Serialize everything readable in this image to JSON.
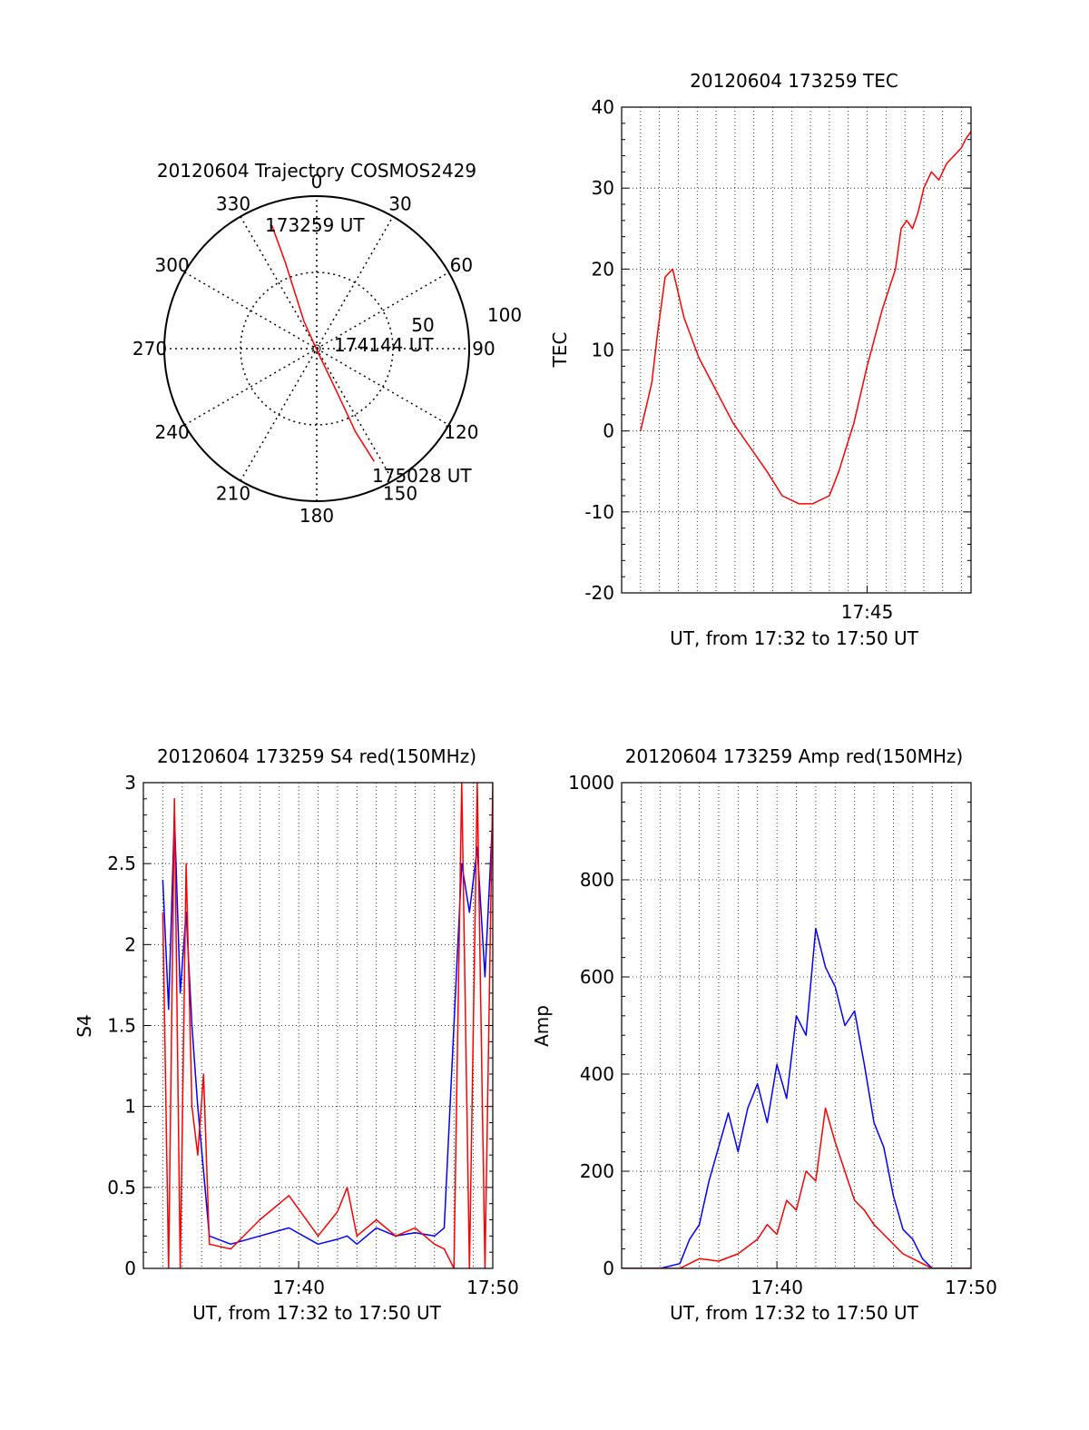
{
  "chart_data": [
    {
      "type": "polar",
      "title": "20120604 Trajectory COSMOS2429",
      "azimuth_labels": [
        "0",
        "30",
        "60",
        "90",
        "120",
        "150",
        "180",
        "210",
        "240",
        "270",
        "300",
        "330"
      ],
      "radial_ring_labels": [
        "50",
        "100"
      ],
      "series": [
        {
          "color": "#ff0000",
          "points": [
            {
              "az": 340,
              "r": 86
            },
            {
              "az": 340,
              "r": 60
            },
            {
              "az": 335,
              "r": 20
            },
            {
              "az": 165,
              "r": 2
            },
            {
              "az": 155,
              "r": 30
            },
            {
              "az": 155,
              "r": 60
            },
            {
              "az": 153,
              "r": 83
            }
          ]
        }
      ],
      "annotations": [
        "173259 UT",
        "174144 UT",
        "175028 UT"
      ]
    },
    {
      "type": "line",
      "title": "20120604 173259 TEC",
      "xlabel": "UT, from 17:32 to 17:50 UT",
      "ylabel": "TEC",
      "ylim": [
        -20,
        40
      ],
      "yticks": [
        "-20",
        "-10",
        "0",
        "10",
        "20",
        "30",
        "40"
      ],
      "xticks": [
        {
          "t": 45,
          "label": "17:45"
        }
      ],
      "xlim_minutes": [
        32.0,
        50.5
      ],
      "grid": true,
      "series": [
        {
          "color": "#ff0000",
          "x": [
            33.0,
            33.3,
            33.6,
            33.9,
            34.3,
            34.7,
            35.3,
            36.1,
            37.0,
            37.9,
            38.8,
            39.7,
            40.5,
            41.4,
            42.1,
            43.0,
            43.5,
            43.9,
            44.3,
            45.0,
            45.8,
            46.5,
            46.8,
            47.1,
            47.4,
            47.7,
            48.0,
            48.4,
            48.8,
            49.2,
            49.6,
            50.0,
            50.2,
            50.5
          ],
          "y": [
            0,
            3,
            6,
            12,
            19,
            20,
            14,
            9,
            5,
            1,
            -2,
            -5,
            -8,
            -9,
            -9,
            -8,
            -5,
            -2,
            1,
            8,
            15,
            20,
            25,
            26,
            25,
            27,
            30,
            32,
            31,
            33,
            34,
            35,
            36,
            37
          ]
        }
      ]
    },
    {
      "type": "line",
      "title": "20120604 173259 S4 red(150MHz)",
      "xlabel": "UT, from 17:32 to 17:50 UT",
      "ylabel": "S4",
      "ylim": [
        0,
        3
      ],
      "yticks": [
        "0",
        "0.5",
        "1",
        "1.5",
        "2",
        "2.5",
        "3"
      ],
      "xticks": [
        {
          "t": 40,
          "label": "17:40"
        },
        {
          "t": 50,
          "label": "17:50"
        }
      ],
      "xlim_minutes": [
        32.0,
        50.0
      ],
      "grid": true,
      "series": [
        {
          "color": "#0000ff",
          "x": [
            33.0,
            33.3,
            33.6,
            33.9,
            34.2,
            34.5,
            34.8,
            35.1,
            35.4,
            36.5,
            38.0,
            39.5,
            41.0,
            42.0,
            42.5,
            43.0,
            44.0,
            45.0,
            46.0,
            47.0,
            47.5,
            48.0,
            48.4,
            48.8,
            49.2,
            49.6,
            50.0
          ],
          "y": [
            2.4,
            1.6,
            2.8,
            1.7,
            2.2,
            1.5,
            1.0,
            0.6,
            0.2,
            0.15,
            0.2,
            0.25,
            0.15,
            0.18,
            0.2,
            0.15,
            0.25,
            0.2,
            0.22,
            0.2,
            0.25,
            1.5,
            2.5,
            2.2,
            2.6,
            1.8,
            2.8
          ]
        },
        {
          "color": "#ff0000",
          "x": [
            33.0,
            33.3,
            33.6,
            33.9,
            34.2,
            34.5,
            34.8,
            35.1,
            35.4,
            36.5,
            38.0,
            39.5,
            41.0,
            42.0,
            42.5,
            43.0,
            44.0,
            45.0,
            46.0,
            47.0,
            47.5,
            48.0,
            48.4,
            48.8,
            49.2,
            49.6,
            50.0
          ],
          "y": [
            2.2,
            0.0,
            2.9,
            0.0,
            2.5,
            1.0,
            0.7,
            1.2,
            0.15,
            0.12,
            0.3,
            0.45,
            0.2,
            0.35,
            0.5,
            0.2,
            0.3,
            0.2,
            0.25,
            0.15,
            0.12,
            0.0,
            3.0,
            0.0,
            3.0,
            0.0,
            3.0
          ]
        }
      ]
    },
    {
      "type": "line",
      "title": "20120604 173259 Amp red(150MHz)",
      "xlabel": "UT, from 17:32 to 17:50 UT",
      "ylabel": "Amp",
      "ylim": [
        0,
        1000
      ],
      "yticks": [
        "0",
        "200",
        "400",
        "600",
        "800",
        "1000"
      ],
      "xticks": [
        {
          "t": 40,
          "label": "17:40"
        },
        {
          "t": 50,
          "label": "17:50"
        }
      ],
      "xlim_minutes": [
        32.0,
        50.0
      ],
      "grid": true,
      "series": [
        {
          "color": "#0000ff",
          "x": [
            32.0,
            34.0,
            35.0,
            35.5,
            36.0,
            36.5,
            37.0,
            37.5,
            38.0,
            38.5,
            39.0,
            39.5,
            40.0,
            40.5,
            41.0,
            41.5,
            42.0,
            42.5,
            43.0,
            43.5,
            44.0,
            44.5,
            45.0,
            45.5,
            46.0,
            46.5,
            47.0,
            47.5,
            48.0,
            50.0
          ],
          "y": [
            0,
            0,
            10,
            60,
            90,
            180,
            250,
            320,
            240,
            330,
            380,
            300,
            420,
            350,
            520,
            480,
            700,
            620,
            580,
            500,
            530,
            420,
            300,
            250,
            150,
            80,
            60,
            20,
            0,
            0
          ]
        },
        {
          "color": "#ff0000",
          "x": [
            32.0,
            35.0,
            36.0,
            37.0,
            38.0,
            39.0,
            39.5,
            40.0,
            40.5,
            41.0,
            41.5,
            42.0,
            42.5,
            43.0,
            43.5,
            44.0,
            44.5,
            45.0,
            45.5,
            46.0,
            46.5,
            47.0,
            47.5,
            48.0,
            50.0
          ],
          "y": [
            0,
            0,
            20,
            15,
            30,
            60,
            90,
            70,
            140,
            120,
            200,
            180,
            330,
            260,
            200,
            140,
            120,
            90,
            70,
            50,
            30,
            20,
            10,
            0,
            0
          ]
        }
      ]
    }
  ]
}
